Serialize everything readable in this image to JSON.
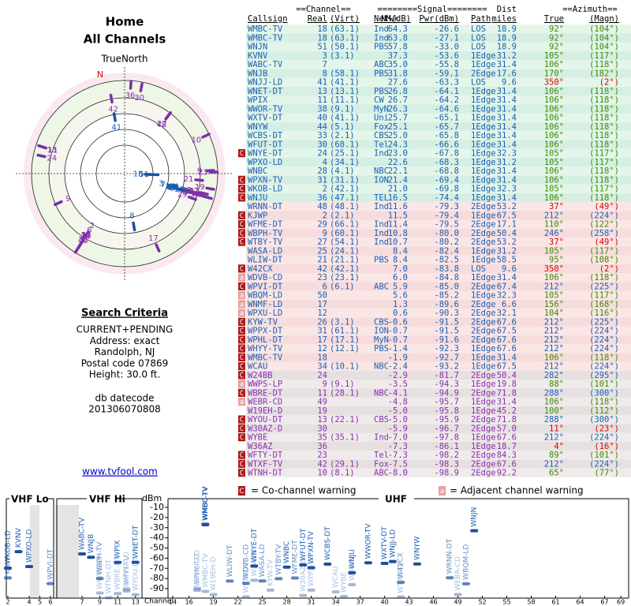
{
  "header": {
    "title": "Home",
    "subtitle": "All Channels"
  },
  "polar": {
    "north_label": "TrueNorth",
    "north": "N"
  },
  "criteria": {
    "title": "Search Criteria",
    "lines": [
      "CURRENT+PENDING",
      "Address: exact",
      "Randolph, NJ",
      "Postal code 07869",
      "Height: 30.0 ft."
    ]
  },
  "datecode": {
    "label": "db datecode",
    "value": "201306070808"
  },
  "link": "www.tvfool.com",
  "table": {
    "group_headers": [
      "==Channel==",
      "========Signal========",
      "Dist",
      "==Azimuth=="
    ],
    "columns": [
      "Callsign",
      "Real",
      "(Virt)",
      "Netwk",
      "NM(dB)",
      "Pwr(dBm)",
      "Path",
      "miles",
      "True",
      "(Magn)"
    ],
    "rows": [
      [
        null,
        "WMBC-TV",
        "18",
        "(63.1)",
        "Ind",
        "64.3",
        "-26.6",
        "LOS",
        "18.9",
        "92°",
        "(104°)"
      ],
      [
        null,
        "WMBC-TV",
        "18",
        "(63.1)",
        "Ind",
        "63.8",
        "-27.1",
        "LOS",
        "18.9",
        "92°",
        "(104°)"
      ],
      [
        null,
        "WNJN",
        "51",
        "(50.1)",
        "PBS",
        "57.8",
        "-33.0",
        "LOS",
        "18.9",
        "92°",
        "(104°)"
      ],
      [
        null,
        "KVNV",
        "3",
        "(3.1)",
        null,
        "37.3",
        "-53.6",
        "1Edge",
        "31.2",
        "105°",
        "(117°)"
      ],
      [
        null,
        "WABC-TV",
        "7",
        null,
        "ABC",
        "35.0",
        "-55.8",
        "1Edge",
        "31.4",
        "106°",
        "(118°)"
      ],
      [
        null,
        "WNJB",
        "8",
        "(58.1)",
        "PBS",
        "31.8",
        "-59.1",
        "2Edge",
        "17.6",
        "170°",
        "(182°)"
      ],
      [
        null,
        "WNJJ-LD",
        "41",
        "(41.1)",
        null,
        "27.6",
        "-63.3",
        "LOS",
        "9.6",
        "350°",
        "(2°)"
      ],
      [
        null,
        "WNET-DT",
        "13",
        "(13.1)",
        "PBS",
        "26.8",
        "-64.1",
        "1Edge",
        "31.4",
        "106°",
        "(118°)"
      ],
      [
        null,
        "WPIX",
        "11",
        "(11.1)",
        "CW",
        "26.7",
        "-64.2",
        "1Edge",
        "31.4",
        "106°",
        "(118°)"
      ],
      [
        null,
        "WWOR-TV",
        "38",
        "(9.1)",
        "MyN",
        "26.3",
        "-64.6",
        "1Edge",
        "31.4",
        "106°",
        "(118°)"
      ],
      [
        null,
        "WXTV-DT",
        "40",
        "(41.1)",
        "Uni",
        "25.7",
        "-65.1",
        "1Edge",
        "31.4",
        "106°",
        "(118°)"
      ],
      [
        null,
        "WNYW",
        "44",
        "(5.1)",
        "Fox",
        "25.1",
        "-65.7",
        "1Edge",
        "31.4",
        "106°",
        "(118°)"
      ],
      [
        null,
        "WCBS-DT",
        "33",
        "(2.1)",
        "CBS",
        "25.0",
        "-65.8",
        "1Edge",
        "31.4",
        "106°",
        "(118°)"
      ],
      [
        null,
        "WFUT-DT",
        "30",
        "(68.1)",
        "Tel",
        "24.3",
        "-66.6",
        "1Edge",
        "31.4",
        "106°",
        "(118°)"
      ],
      [
        "C",
        "WNYE-DT",
        "24",
        "(25.1)",
        "Ind",
        "23.0",
        "-67.8",
        "1Edge",
        "32.3",
        "105°",
        "(117°)"
      ],
      [
        null,
        "WPXO-LD",
        "4",
        "(34.1)",
        null,
        "22.6",
        "-68.3",
        "1Edge",
        "31.2",
        "105°",
        "(117°)"
      ],
      [
        null,
        "WNBC",
        "28",
        "(4.1)",
        "NBC",
        "22.1",
        "-68.8",
        "1Edge",
        "31.4",
        "106°",
        "(118°)"
      ],
      [
        "C",
        "WPXN-TV",
        "31",
        "(31.1)",
        "ION",
        "21.4",
        "-69.4",
        "1Edge",
        "31.4",
        "106°",
        "(118°)"
      ],
      [
        "C",
        "WKOB-LD",
        "2",
        "(42.1)",
        null,
        "21.0",
        "-69.8",
        "1Edge",
        "32.3",
        "105°",
        "(117°)"
      ],
      [
        "C",
        "WNJU",
        "36",
        "(47.1)",
        "TEL",
        "16.5",
        "-74.4",
        "1Edge",
        "31.4",
        "106°",
        "(118°)"
      ],
      [
        null,
        "WRNN-DT",
        "48",
        "(48.1)",
        "Ind",
        "11.6",
        "-79.3",
        "2Edge",
        "53.2",
        "37°",
        "(49°)"
      ],
      [
        "C",
        "KJWP",
        "2",
        "(2.1)",
        null,
        "11.5",
        "-79.4",
        "1Edge",
        "67.5",
        "212°",
        "(224°)"
      ],
      [
        "C",
        "WFME-DT",
        "29",
        "(66.1)",
        "Ind",
        "11.4",
        "-79.5",
        "2Edge",
        "17.1",
        "110°",
        "(122°)"
      ],
      [
        "C",
        "WBPH-TV",
        "9",
        "(60.1)",
        "Ind",
        "10.8",
        "-80.0",
        "2Edge",
        "50.4",
        "246°",
        "(258°)"
      ],
      [
        "C",
        "WTBY-TV",
        "27",
        "(54.1)",
        "Ind",
        "10.7",
        "-80.2",
        "2Edge",
        "53.2",
        "37°",
        "(49°)"
      ],
      [
        null,
        "WASA-LD",
        "25",
        "(24.1)",
        null,
        "8.4",
        "-82.4",
        "1Edge",
        "31.2",
        "105°",
        "(117°)"
      ],
      [
        null,
        "WLIW-DT",
        "21",
        "(21.1)",
        "PBS",
        "8.4",
        "-82.5",
        "1Edge",
        "58.5",
        "95°",
        "(108°)"
      ],
      [
        "C",
        "W42CX",
        "42",
        "(42.1)",
        null,
        "7.0",
        "-83.8",
        "LOS",
        "9.6",
        "350°",
        "(2°)"
      ],
      [
        "a",
        "WDVB-CD",
        "23",
        "(23.1)",
        null,
        "6.0",
        "-84.8",
        "1Edge",
        "31.4",
        "106°",
        "(118°)"
      ],
      [
        "C",
        "WPVI-DT",
        "6",
        "(6.1)",
        "ABC",
        "5.9",
        "-85.0",
        "2Edge",
        "67.4",
        "212°",
        "(225°)"
      ],
      [
        "a",
        "WBQM-LD",
        "50",
        null,
        null,
        "5.6",
        "-85.2",
        "1Edge",
        "32.3",
        "105°",
        "(117°)"
      ],
      [
        "a",
        "WNMF-LD",
        "17",
        null,
        null,
        "1.3",
        "-89.6",
        "2Edge",
        "6.6",
        "156°",
        "(168°)"
      ],
      [
        "a",
        "WPXU-LD",
        "12",
        null,
        null,
        "0.6",
        "-90.3",
        "2Edge",
        "32.1",
        "104°",
        "(116°)"
      ],
      [
        "C",
        "KYW-TV",
        "26",
        "(3.1)",
        "CBS",
        "-0.6",
        "-91.5",
        "2Edge",
        "67.6",
        "212°",
        "(225°)"
      ],
      [
        "C",
        "WPPX-DT",
        "31",
        "(61.1)",
        "ION",
        "-0.7",
        "-91.5",
        "2Edge",
        "67.5",
        "212°",
        "(224°)"
      ],
      [
        "C",
        "WPHL-DT",
        "17",
        "(17.1)",
        "MyN",
        "-0.7",
        "-91.6",
        "2Edge",
        "67.6",
        "212°",
        "(224°)"
      ],
      [
        "C",
        "WHYY-TV",
        "12",
        "(12.1)",
        "PBS",
        "-1.4",
        "-92.3",
        "1Edge",
        "67.6",
        "212°",
        "(224°)"
      ],
      [
        "C",
        "WMBC-TV",
        "18",
        null,
        null,
        "-1.9",
        "-92.7",
        "1Edge",
        "31.4",
        "106°",
        "(118°)"
      ],
      [
        "C",
        "WCAU",
        "34",
        "(10.1)",
        "NBC",
        "-2.4",
        "-93.2",
        "1Edge",
        "67.5",
        "212°",
        "(224°)"
      ],
      [
        "C",
        "W24BB",
        "24",
        null,
        null,
        "-2.9",
        "-81.7",
        "2Edge",
        "50.4",
        "282°",
        "(295°)"
      ],
      [
        "a",
        "WWPS-LP",
        "9",
        "(9.1)",
        null,
        "-3.5",
        "-94.3",
        "1Edge",
        "19.8",
        "88°",
        "(101°)"
      ],
      [
        "C",
        "WBRE-DT",
        "11",
        "(28.1)",
        "NBC",
        "-4.1",
        "-94.9",
        "2Edge",
        "71.8",
        "288°",
        "(300°)"
      ],
      [
        "a",
        "WEBR-CD",
        "49",
        null,
        null,
        "-4.8",
        "-95.7",
        "1Edge",
        "31.4",
        "106°",
        "(118°)"
      ],
      [
        null,
        "W19EH-D",
        "19",
        null,
        null,
        "-5.0",
        "-95.8",
        "1Edge",
        "45.2",
        "100°",
        "(112°)"
      ],
      [
        "C",
        "WYOU-DT",
        "13",
        "(22.1)",
        "CBS",
        "-5.0",
        "-95.9",
        "2Edge",
        "71.8",
        "288°",
        "(300°)"
      ],
      [
        "C",
        "W30AZ-D",
        "30",
        null,
        null,
        "-5.9",
        "-96.7",
        "2Edge",
        "57.0",
        "11°",
        "(23°)"
      ],
      [
        "C",
        "WYBE",
        "35",
        "(35.1)",
        "Ind",
        "-7.0",
        "-97.8",
        "1Edge",
        "67.6",
        "212°",
        "(224°)"
      ],
      [
        null,
        "W36AZ",
        "36",
        null,
        null,
        "-7.3",
        "-86.1",
        "1Edge",
        "18.7",
        "4°",
        "(16°)"
      ],
      [
        "C",
        "WFTY-DT",
        "23",
        null,
        "Tel",
        "-7.3",
        "-98.2",
        "2Edge",
        "84.3",
        "89°",
        "(101°)"
      ],
      [
        "C",
        "WTXF-TV",
        "42",
        "(29.1)",
        "Fox",
        "-7.5",
        "-98.3",
        "2Edge",
        "67.6",
        "212°",
        "(224°)"
      ],
      [
        "C",
        "WTNH-DT",
        "10",
        "(8.1)",
        "ABC",
        "-8.0",
        "-98.9",
        "2Edge",
        "92.2",
        "65°",
        "(77°)"
      ]
    ]
  },
  "channel_chart": {
    "vhf_lo": "VHF Lo",
    "vhf_hi": "VHF Hi",
    "uhf": "UHF",
    "y_label": "dBm",
    "x_label": "Channel",
    "ylim": [
      -5,
      -95
    ],
    "yticks": [
      -10,
      -20,
      -30,
      -40,
      -50,
      -60,
      -70,
      -80,
      -90
    ],
    "xticks": [
      2,
      4,
      5,
      6,
      7,
      9,
      11,
      13,
      14,
      16,
      19,
      22,
      25,
      28,
      31,
      34,
      37,
      40,
      43,
      46,
      49,
      52,
      55,
      58,
      61,
      64,
      67,
      69
    ],
    "legend": {
      "co_icon": "C",
      "co": "= Co-channel warning",
      "adj_icon": "a",
      "adj": "= Adjacent channel warning"
    },
    "bar_color": "#1f4f9e"
  }
}
